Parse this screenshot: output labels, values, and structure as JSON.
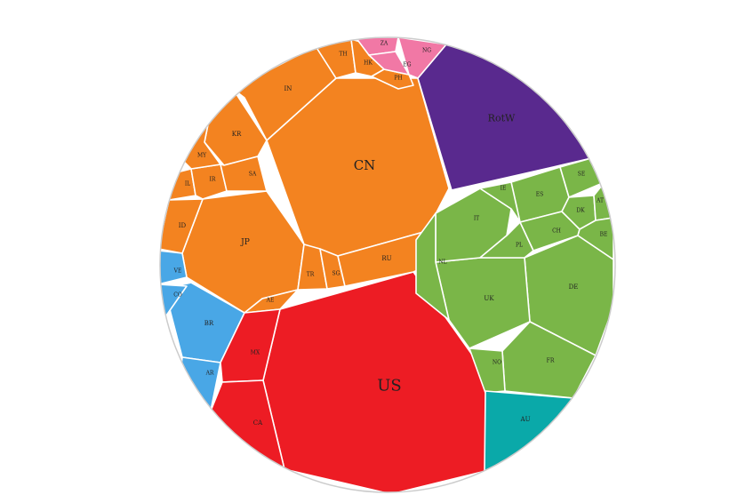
{
  "chart_data": {
    "type": "voronoi-treemap",
    "colors": {
      "orange": "#F38320",
      "red": "#ED1C24",
      "green": "#7AB648",
      "purple": "#59298E",
      "pink": "#F178A5",
      "blue": "#49A7E6",
      "teal": "#0AA9A9",
      "outline": "#cccccc"
    },
    "cells": [
      {
        "label": "US",
        "color": "red"
      },
      {
        "label": "CN",
        "color": "orange"
      },
      {
        "label": "RotW",
        "color": "purple"
      },
      {
        "label": "JP",
        "color": "orange"
      },
      {
        "label": "IN",
        "color": "orange"
      },
      {
        "label": "KR",
        "color": "orange"
      },
      {
        "label": "ID",
        "color": "orange"
      },
      {
        "label": "IL",
        "color": "orange"
      },
      {
        "label": "IR",
        "color": "orange"
      },
      {
        "label": "MY",
        "color": "orange"
      },
      {
        "label": "SA",
        "color": "orange"
      },
      {
        "label": "TH",
        "color": "orange"
      },
      {
        "label": "HK",
        "color": "orange"
      },
      {
        "label": "PH",
        "color": "orange"
      },
      {
        "label": "TR",
        "color": "orange"
      },
      {
        "label": "SG",
        "color": "orange"
      },
      {
        "label": "RU",
        "color": "orange"
      },
      {
        "label": "AE",
        "color": "orange"
      },
      {
        "label": "ZA",
        "color": "pink"
      },
      {
        "label": "NG",
        "color": "pink"
      },
      {
        "label": "EG",
        "color": "pink"
      },
      {
        "label": "DE",
        "color": "green"
      },
      {
        "label": "UK",
        "color": "green"
      },
      {
        "label": "FR",
        "color": "green"
      },
      {
        "label": "IT",
        "color": "green"
      },
      {
        "label": "ES",
        "color": "green"
      },
      {
        "label": "NL",
        "color": "green"
      },
      {
        "label": "PL",
        "color": "green"
      },
      {
        "label": "CH",
        "color": "green"
      },
      {
        "label": "IE",
        "color": "green"
      },
      {
        "label": "SE",
        "color": "green"
      },
      {
        "label": "DK",
        "color": "green"
      },
      {
        "label": "AT",
        "color": "green"
      },
      {
        "label": "BE",
        "color": "green"
      },
      {
        "label": "NO",
        "color": "green"
      },
      {
        "label": "AU",
        "color": "teal"
      },
      {
        "label": "BR",
        "color": "blue"
      },
      {
        "label": "AR",
        "color": "blue"
      },
      {
        "label": "CO",
        "color": "blue"
      },
      {
        "label": "VE",
        "color": "blue"
      },
      {
        "label": "MX",
        "color": "red"
      },
      {
        "label": "CA",
        "color": "red"
      }
    ]
  }
}
